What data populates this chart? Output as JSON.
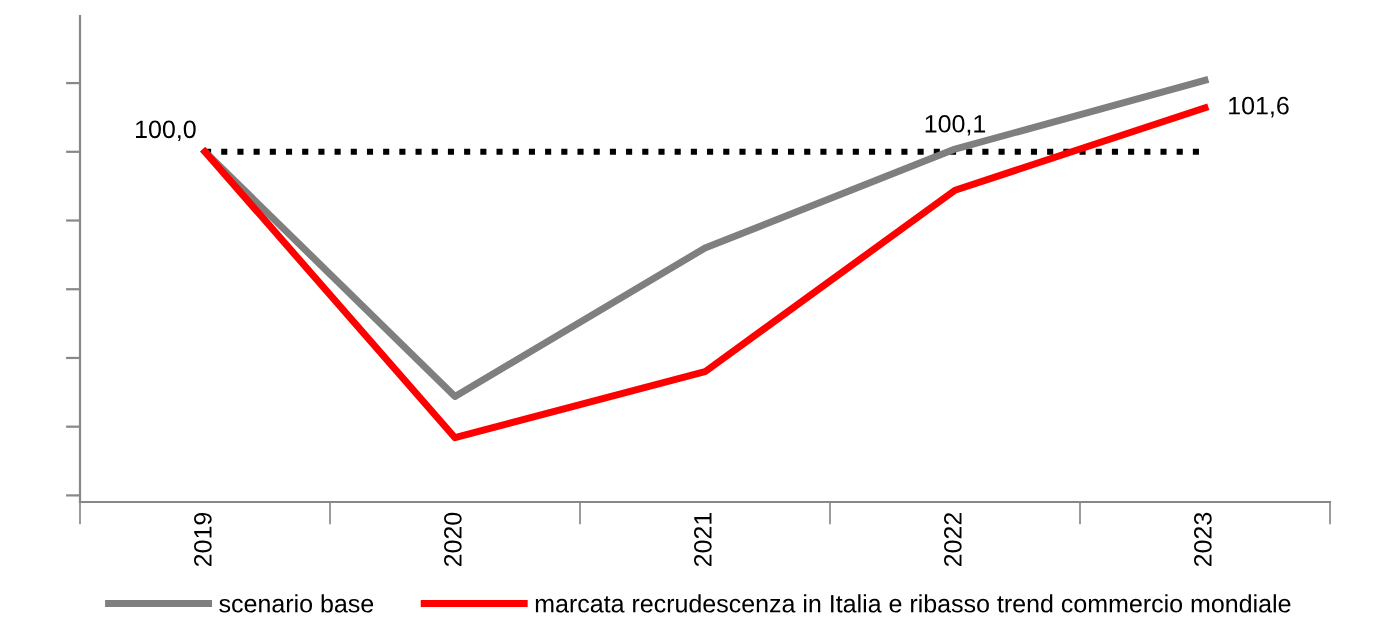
{
  "chart_data": {
    "type": "line",
    "categories": [
      "2019",
      "2020",
      "2021",
      "2022",
      "2023"
    ],
    "series": [
      {
        "name": "scenario base",
        "color": "#7f7f7f",
        "values": [
          100.0,
          91.1,
          96.5,
          100.1,
          102.6
        ],
        "value_labels": [
          "100,0",
          null,
          null,
          "100,1",
          null
        ]
      },
      {
        "name": "marcata recrudescenza in Italia e ribasso trend commercio mondiale",
        "color": "#ff0000",
        "values": [
          100.0,
          89.6,
          92.0,
          98.6,
          101.6
        ],
        "value_labels": [
          null,
          null,
          null,
          null,
          "101,6"
        ]
      }
    ],
    "tick_labels": "x",
    "ref_lines": [
      {
        "axis": "y",
        "value": 100,
        "color": "#000000",
        "line_style": "dotted"
      }
    ],
    "legend": "bottom",
    "grid": false,
    "marker": "none",
    "line_style": "solid"
  }
}
